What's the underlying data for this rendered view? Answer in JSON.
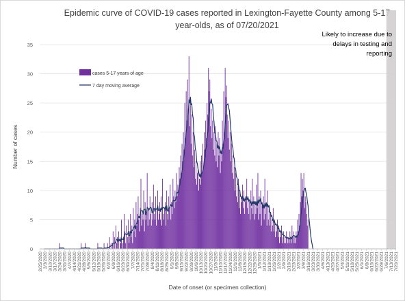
{
  "chart_data": {
    "type": "bar",
    "title_line1": "Epidemic curve of COVID-19 cases reported in Lexington-Fayette County among 5-17",
    "title_line2": "year-olds, as of 07/20/2021",
    "xlabel": "Date of onset (or specimen collection)",
    "ylabel": "Number of cases",
    "ylim": [
      0,
      35
    ],
    "yticks": [
      0,
      5,
      10,
      15,
      20,
      25,
      30,
      35
    ],
    "start_date": "2020-02-25",
    "end_date": "2021-07-20",
    "x_ticks": [
      "2/25/2020",
      "3/3/2020",
      "3/10/2020",
      "3/17/2020",
      "3/24/2020",
      "3/31/2020",
      "4/7/2020",
      "4/14/2020",
      "4/21/2020",
      "4/28/2020",
      "5/5/2020",
      "5/12/2020",
      "5/19/2020",
      "5/26/2020",
      "6/2/2020",
      "6/9/2020",
      "6/16/2020",
      "6/23/2020",
      "6/30/2020",
      "7/7/2020",
      "7/14/2020",
      "7/21/2020",
      "7/28/2020",
      "8/4/2020",
      "8/11/2020",
      "8/18/2020",
      "8/25/2020",
      "9/1/2020",
      "9/8/2020",
      "9/15/2020",
      "9/22/2020",
      "9/29/2020",
      "10/6/2020",
      "10/13/2020",
      "10/20/2020",
      "10/27/2020",
      "11/3/2020",
      "11/10/2020",
      "11/17/2020",
      "11/24/2020",
      "12/1/2020",
      "12/8/2020",
      "12/15/2020",
      "12/22/2020",
      "12/29/2020",
      "1/5/2021",
      "1/12/2021",
      "1/19/2021",
      "1/26/2021",
      "2/2/2021",
      "2/9/2021",
      "2/16/2021",
      "2/23/2021",
      "3/2/2021",
      "3/9/2021",
      "3/16/2021",
      "3/23/2021",
      "3/30/2021",
      "4/6/2021",
      "4/13/2021",
      "4/20/2021",
      "4/27/2021",
      "5/4/2021",
      "5/11/2021",
      "5/18/2021",
      "5/25/2021",
      "6/1/2021",
      "6/8/2021",
      "6/15/2021",
      "6/22/2021",
      "6/29/2021",
      "7/6/2021",
      "7/13/2021",
      "7/20/2021"
    ],
    "series": [
      {
        "name": "cases 5-17 years of age",
        "color": "#7030A0"
      },
      {
        "name": "7 day moving average",
        "color": "#1F3864"
      }
    ],
    "daily_cases": [
      0,
      0,
      0,
      0,
      0,
      0,
      0,
      0,
      0,
      0,
      0,
      0,
      0,
      0,
      0,
      0,
      0,
      0,
      0,
      0,
      0,
      0,
      0,
      0,
      0,
      0,
      0,
      0,
      1,
      0,
      0,
      0,
      0,
      0,
      0,
      0,
      0,
      0,
      0,
      0,
      0,
      0,
      0,
      0,
      0,
      0,
      0,
      0,
      0,
      0,
      0,
      0,
      0,
      0,
      0,
      0,
      0,
      0,
      0,
      1,
      0,
      0,
      0,
      0,
      0,
      1,
      0,
      0,
      0,
      0,
      0,
      0,
      0,
      0,
      0,
      0,
      0,
      0,
      0,
      0,
      0,
      0,
      0,
      1,
      0,
      0,
      0,
      0,
      0,
      0,
      0,
      0,
      1,
      0,
      0,
      0,
      0,
      1,
      0,
      0,
      2,
      0,
      1,
      0,
      1,
      3,
      0,
      2,
      0,
      4,
      1,
      2,
      0,
      3,
      0,
      2,
      1,
      5,
      0,
      1,
      2,
      6,
      3,
      1,
      4,
      0,
      2,
      5,
      1,
      3,
      6,
      2,
      4,
      1,
      7,
      3,
      5,
      2,
      8,
      4,
      6,
      9,
      5,
      3,
      7,
      12,
      4,
      6,
      5,
      10,
      3,
      8,
      5,
      6,
      13,
      4,
      7,
      5,
      9,
      6,
      4,
      8,
      5,
      11,
      6,
      5,
      9,
      4,
      7,
      10,
      5,
      6,
      8,
      5,
      9,
      4,
      12,
      6,
      5,
      7,
      8,
      4,
      10,
      6,
      5,
      9,
      7,
      11,
      5,
      8,
      6,
      12,
      9,
      7,
      10,
      8,
      13,
      9,
      11,
      10,
      14,
      12,
      16,
      13,
      18,
      15,
      20,
      17,
      25,
      19,
      27,
      22,
      29,
      24,
      33,
      21,
      26,
      18,
      23,
      16,
      20,
      14,
      17,
      12,
      15,
      11,
      13,
      14,
      10,
      12,
      15,
      11,
      16,
      13,
      18,
      14,
      20,
      17,
      22,
      19,
      25,
      23,
      31,
      27,
      29,
      21,
      24,
      19,
      22,
      17,
      20,
      16,
      21,
      15,
      18,
      14,
      20,
      16,
      19,
      13,
      17,
      15,
      22,
      18,
      27,
      20,
      31,
      26,
      28,
      23,
      19,
      22,
      17,
      20,
      15,
      18,
      13,
      16,
      12,
      14,
      10,
      13,
      9,
      11,
      8,
      12,
      7,
      10,
      6,
      9,
      8,
      11,
      7,
      10,
      6,
      9,
      8,
      12,
      7,
      9,
      6,
      8,
      5,
      10,
      7,
      12,
      6,
      9,
      5,
      8,
      6,
      11,
      7,
      13,
      5,
      9,
      6,
      10,
      4,
      8,
      7,
      9,
      5,
      12,
      6,
      8,
      4,
      10,
      5,
      7,
      4,
      6,
      3,
      5,
      4,
      7,
      3,
      5,
      2,
      4,
      3,
      5,
      2,
      4,
      1,
      3,
      2,
      4,
      1,
      2,
      3,
      1,
      2,
      1,
      3,
      2,
      1,
      2,
      1,
      3,
      2,
      1,
      4,
      2,
      3,
      1,
      2,
      1,
      3,
      2,
      5,
      3,
      6,
      4,
      8,
      13,
      9,
      12,
      10,
      13,
      7,
      9,
      8,
      6,
      4,
      5,
      0,
      0,
      0,
      0,
      0,
      0,
      0,
      0
    ],
    "annotation": "Likely to increase due to delays in testing and reporting",
    "annotation_lines": [
      "Likely to increase due to",
      "delays in testing and",
      "reporting"
    ]
  }
}
